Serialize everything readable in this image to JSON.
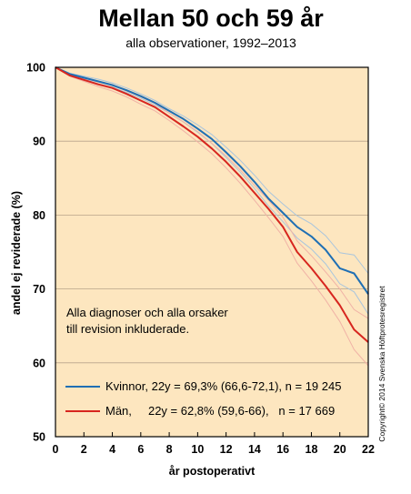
{
  "chart_data": {
    "type": "line",
    "title": "Mellan 50 och 59 år",
    "subtitle": "alla observationer, 1992–2013",
    "xlabel": "år postoperativt",
    "ylabel": "andel ej reviderade (%)",
    "xlim": [
      0,
      22
    ],
    "ylim": [
      50,
      100
    ],
    "xticks": [
      "0",
      "2",
      "4",
      "6",
      "8",
      "10",
      "12",
      "14",
      "16",
      "18",
      "20",
      "22"
    ],
    "yticks": [
      "50",
      "60",
      "70",
      "80",
      "90",
      "100"
    ],
    "grid": "horizontal",
    "background": "#fde6bf",
    "note_lines": [
      "Alla diagnoser och alla orsaker",
      "till revision inkluderade."
    ],
    "copyright": "Copyright© 2014 Svenska Höftprotesregistret",
    "series": [
      {
        "name": "Kvinnor, 22y = 69,3% (66,6-72,1), n = 19 245",
        "color": "#1f6fb4",
        "ci_color": "#a9c5dd",
        "x": [
          0,
          1,
          2,
          3,
          4,
          5,
          6,
          7,
          8,
          9,
          10,
          11,
          12,
          13,
          14,
          15,
          16,
          17,
          18,
          19,
          20,
          21,
          22
        ],
        "y": [
          100,
          99.1,
          98.6,
          98.1,
          97.6,
          96.9,
          96.1,
          95.2,
          94.1,
          93.0,
          91.7,
          90.3,
          88.5,
          86.6,
          84.5,
          82.2,
          80.3,
          78.4,
          77.1,
          75.3,
          72.8,
          72.1,
          69.3
        ],
        "ci_low": [
          100,
          99.0,
          98.4,
          97.8,
          97.3,
          96.6,
          95.8,
          94.9,
          93.8,
          92.6,
          91.2,
          89.7,
          87.8,
          85.8,
          83.6,
          81.2,
          79.1,
          76.9,
          75.4,
          73.4,
          70.7,
          69.6,
          66.6
        ],
        "ci_high": [
          100,
          99.2,
          98.8,
          98.4,
          97.9,
          97.2,
          96.4,
          95.5,
          94.4,
          93.4,
          92.2,
          90.9,
          89.2,
          87.4,
          85.4,
          83.2,
          81.5,
          79.9,
          78.8,
          77.2,
          74.9,
          74.6,
          72.1
        ]
      },
      {
        "name": "Män,     22y = 62,8% (59,6-66),   n = 17 669",
        "color": "#d7261f",
        "ci_color": "#f0b2a6",
        "x": [
          0,
          1,
          2,
          3,
          4,
          5,
          6,
          7,
          8,
          9,
          10,
          11,
          12,
          13,
          14,
          15,
          16,
          17,
          18,
          19,
          20,
          21,
          22
        ],
        "y": [
          100,
          98.9,
          98.3,
          97.7,
          97.2,
          96.4,
          95.5,
          94.6,
          93.3,
          92.0,
          90.6,
          89.0,
          87.2,
          85.2,
          83.0,
          80.8,
          78.4,
          75.0,
          72.8,
          70.4,
          67.8,
          64.5,
          62.8
        ],
        "ci_low": [
          100,
          98.8,
          98.1,
          97.4,
          96.8,
          96.0,
          95.0,
          94.1,
          92.8,
          91.4,
          89.9,
          88.3,
          86.4,
          84.3,
          82.0,
          79.6,
          77.1,
          73.5,
          71.1,
          68.5,
          65.6,
          61.8,
          59.6
        ],
        "ci_high": [
          100,
          99.0,
          98.5,
          98.0,
          97.6,
          96.8,
          96.0,
          95.1,
          93.8,
          92.6,
          91.3,
          89.7,
          88.0,
          86.1,
          84.0,
          82.0,
          79.7,
          76.5,
          74.5,
          72.3,
          70.0,
          67.2,
          66.0
        ]
      }
    ]
  }
}
